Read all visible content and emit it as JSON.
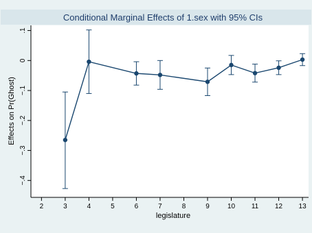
{
  "chart_data": {
    "type": "line",
    "title": "Conditional Marginal Effects of 1.sex with 95% CIs",
    "xlabel": "legislature",
    "ylabel": "Effects on Pr(Ghost)",
    "x_ticks": [
      2,
      3,
      4,
      5,
      6,
      7,
      8,
      9,
      10,
      11,
      12,
      13
    ],
    "y_ticks": [
      0.1,
      0,
      -0.1,
      -0.2,
      -0.3,
      -0.4
    ],
    "y_tick_labels": [
      ".1",
      "0",
      "−.1",
      "−.2",
      "−.3",
      "−.4"
    ],
    "xlim": [
      1.7,
      13.2
    ],
    "ylim": [
      -0.445,
      0.115
    ],
    "grid": false,
    "legend": "none",
    "colors": {
      "line": "#1a476f",
      "errorbar": "#1a476f",
      "plot_bg": "#ffffff",
      "outer_bg": "#eaf2f3",
      "title_bg": "#d9e6eb",
      "title_text": "#1e3d6b"
    },
    "series": [
      {
        "x": [
          3,
          4,
          6,
          7,
          9,
          10,
          11,
          12,
          13
        ],
        "y": [
          -0.265,
          -0.004,
          -0.043,
          -0.048,
          -0.071,
          -0.015,
          -0.042,
          -0.024,
          0.003
        ],
        "ci_low": [
          -0.427,
          -0.11,
          -0.082,
          -0.096,
          -0.117,
          -0.047,
          -0.072,
          -0.047,
          -0.017
        ],
        "ci_high": [
          -0.105,
          0.102,
          -0.004,
          0.0,
          -0.025,
          0.017,
          -0.012,
          -0.001,
          0.023
        ]
      }
    ]
  }
}
